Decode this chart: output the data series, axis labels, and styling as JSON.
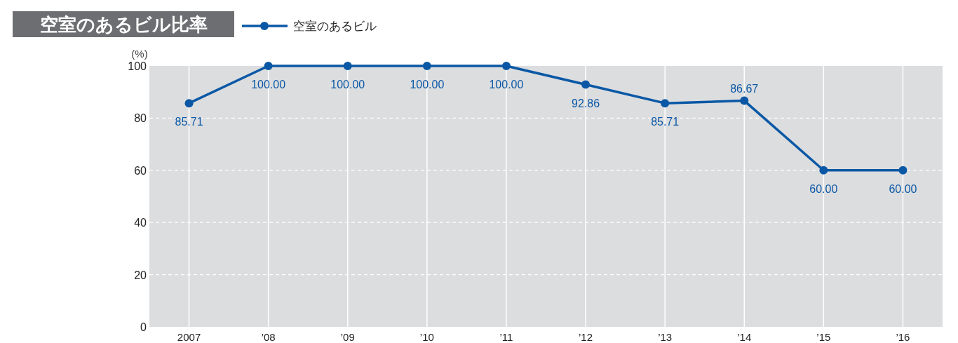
{
  "chart_data": {
    "type": "line",
    "title": "空室のあるビル比率",
    "ylabel": "(%)",
    "categories": [
      "2007",
      "’08",
      "’09",
      "’10",
      "’11",
      "’12",
      "’13",
      "’14",
      "’15",
      "’16"
    ],
    "series": [
      {
        "name": "空室のあるビル",
        "color": "#0a58a5",
        "values": [
          85.71,
          100.0,
          100.0,
          100.0,
          100.0,
          92.86,
          85.71,
          86.67,
          60.0,
          60.0
        ],
        "value_labels": [
          "85.71",
          "100.00",
          "100.00",
          "100.00",
          "100.00",
          "92.86",
          "85.71",
          "86.67",
          "60.00",
          "60.00"
        ]
      }
    ],
    "ylim": [
      0,
      100
    ],
    "yticks": [
      0,
      20,
      40,
      60,
      80,
      100
    ],
    "grid": true,
    "legend": "top left",
    "marker": "circle"
  }
}
